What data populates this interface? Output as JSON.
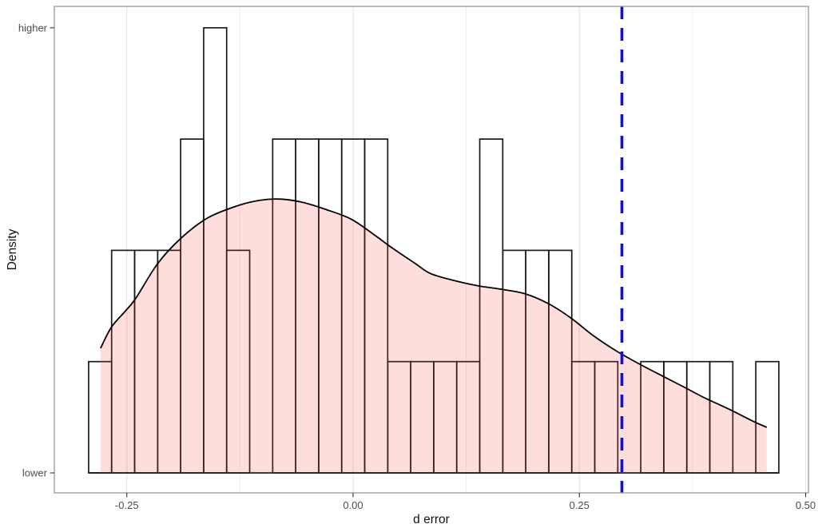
{
  "chart_data": {
    "type": "histogram+density",
    "title": "",
    "xlabel": "d error",
    "ylabel": "Density",
    "x_ticks": [
      {
        "label": "-0.25",
        "value": -0.25
      },
      {
        "label": "0.00",
        "value": 0.0
      },
      {
        "label": "0.25",
        "value": 0.25
      },
      {
        "label": "0.50",
        "value": 0.5
      }
    ],
    "y_ticks": [
      {
        "label": "lower",
        "value": 0
      },
      {
        "label": "higher",
        "value": 4
      }
    ],
    "x_gridlines": [
      {
        "value": -0.25,
        "major": true
      },
      {
        "value": -0.125,
        "major": false
      },
      {
        "value": 0.0,
        "major": true
      },
      {
        "value": 0.125,
        "major": false
      },
      {
        "value": 0.25,
        "major": true
      },
      {
        "value": 0.375,
        "major": false
      },
      {
        "value": 0.5,
        "major": true
      }
    ],
    "xlim": [
      -0.33,
      0.503
    ],
    "ylim_counts": [
      0,
      4.19
    ],
    "grid_horizontal": false,
    "legend": "none",
    "histogram": {
      "bin_start": -0.2922,
      "bin_width": 0.02542,
      "counts": [
        1,
        2,
        2,
        2,
        3,
        4,
        2,
        0,
        3,
        3,
        3,
        3,
        3,
        1,
        1,
        1,
        1,
        3,
        2,
        2,
        2,
        1,
        1,
        0,
        1,
        1,
        1,
        1,
        0,
        1
      ],
      "n_total": 51
    },
    "density_curve": {
      "x": [
        -0.279,
        -0.267,
        -0.251,
        -0.24,
        -0.216,
        -0.19,
        -0.161,
        -0.128,
        -0.103,
        -0.079,
        -0.055,
        -0.031,
        -0.002,
        0.025,
        0.04,
        0.069,
        0.086,
        0.116,
        0.139,
        0.164,
        0.19,
        0.216,
        0.241,
        0.266,
        0.292,
        0.316,
        0.342,
        0.366,
        0.387,
        0.416,
        0.443,
        0.457
      ],
      "y_counts": [
        1.12,
        1.31,
        1.46,
        1.57,
        1.88,
        2.11,
        2.29,
        2.4,
        2.45,
        2.46,
        2.43,
        2.37,
        2.28,
        2.13,
        2.04,
        1.88,
        1.79,
        1.72,
        1.68,
        1.65,
        1.61,
        1.52,
        1.39,
        1.23,
        1.09,
        0.98,
        0.87,
        0.77,
        0.68,
        0.57,
        0.46,
        0.41
      ]
    },
    "vline": {
      "x": 0.297,
      "style": "dashed"
    }
  },
  "colors": {
    "background": "#ffffff",
    "bar_stroke": "#1a1a1a",
    "density_line": "#000000",
    "density_fill": "rgba(250,60,60,0.175)",
    "vline": "#0d0df0",
    "gridline_major": "#e6e6e6",
    "gridline_minor": "#ededed",
    "panel_border": "#969696",
    "tick_mark": "#333333",
    "tick_label": "#4d4d4d",
    "axis_title": "#111111"
  }
}
